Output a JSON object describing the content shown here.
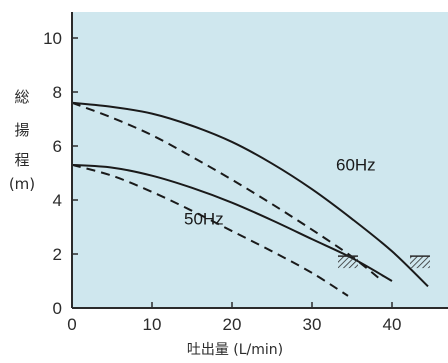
{
  "chart_data": {
    "type": "line",
    "title": "",
    "xlabel": "吐出量 (L/min)",
    "ylabel_chars": [
      "総",
      "揚",
      "程",
      "(m)"
    ],
    "xlim": [
      0,
      47
    ],
    "ylim": [
      0,
      11
    ],
    "x_ticks": [
      0,
      10,
      20,
      30,
      40
    ],
    "y_ticks": [
      0,
      2,
      4,
      6,
      8,
      10
    ],
    "grid": false,
    "background": "#cfe7ee",
    "series": [
      {
        "name": "60Hz",
        "style": "solid",
        "x": [
          0,
          5,
          10,
          15,
          20,
          25,
          30,
          35,
          40,
          44.5
        ],
        "y": [
          7.6,
          7.45,
          7.2,
          6.75,
          6.15,
          5.35,
          4.4,
          3.3,
          2.1,
          0.8
        ]
      },
      {
        "name": "",
        "style": "dashed",
        "x": [
          0,
          5,
          10,
          15,
          20,
          25,
          30,
          35,
          38.8
        ],
        "y": [
          7.6,
          7.05,
          6.4,
          5.6,
          4.75,
          3.85,
          2.9,
          1.9,
          1.0
        ]
      },
      {
        "name": "50Hz",
        "style": "solid",
        "x": [
          0,
          5,
          10,
          15,
          20,
          25,
          30,
          35,
          40
        ],
        "y": [
          5.3,
          5.2,
          4.9,
          4.45,
          3.9,
          3.25,
          2.55,
          1.85,
          1.0
        ]
      },
      {
        "name": "",
        "style": "dashed",
        "x": [
          0,
          5,
          10,
          15,
          20,
          25,
          30,
          34.5
        ],
        "y": [
          5.3,
          4.9,
          4.3,
          3.6,
          2.85,
          2.1,
          1.3,
          0.45
        ]
      }
    ],
    "hatch_marks": [
      {
        "x": 34.5,
        "y": 1.7
      },
      {
        "x": 43.5,
        "y": 1.7
      }
    ],
    "labels": [
      {
        "text": "60Hz",
        "x": 33.0,
        "y": 5.1
      },
      {
        "text": "50Hz",
        "x": 14.0,
        "y": 3.1
      }
    ]
  }
}
